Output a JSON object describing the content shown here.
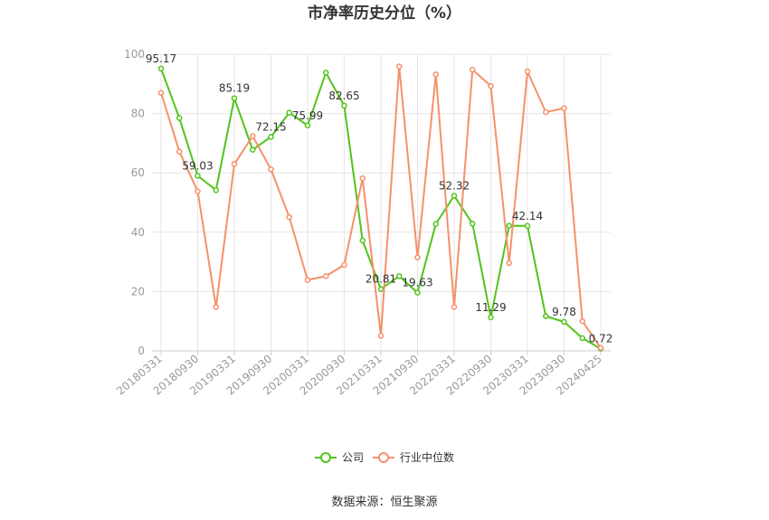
{
  "chart_data": {
    "type": "line",
    "title": "市净率历史分位（%）",
    "ylim": [
      0,
      100
    ],
    "y_ticks": [
      0,
      20,
      40,
      60,
      80,
      100
    ],
    "x": [
      "20180331",
      "20180630",
      "20180930",
      "20181231",
      "20190331",
      "20190630",
      "20190930",
      "20191231",
      "20200331",
      "20200630",
      "20200930",
      "20201231",
      "20210331",
      "20210630",
      "20210930",
      "20211231",
      "20220331",
      "20220630",
      "20220930",
      "20221231",
      "20230331",
      "20230630",
      "20230930",
      "20231231",
      "20240425"
    ],
    "x_tick_labels": [
      "20180331",
      "20180930",
      "20190331",
      "20190930",
      "20200331",
      "20200930",
      "20210331",
      "20210930",
      "20220331",
      "20220930",
      "20230331",
      "20230930",
      "20240425"
    ],
    "series": [
      {
        "name": "公司",
        "color": "#52c41a",
        "values": [
          95.17,
          78.5,
          59.03,
          54.2,
          85.19,
          67.8,
          72.15,
          80.3,
          75.99,
          93.8,
          82.65,
          37.2,
          20.81,
          25.2,
          19.63,
          42.8,
          52.32,
          42.9,
          11.29,
          42.2,
          42.14,
          11.7,
          9.78,
          4.3,
          0.72
        ],
        "labels": {
          "0": "95.17",
          "2": "59.03",
          "4": "85.19",
          "6": "72.15",
          "8": "75.99",
          "10": "82.65",
          "12": "20.81",
          "14": "19.63",
          "16": "52.32",
          "18": "11.29",
          "20": "42.14",
          "22": "9.78",
          "24": "0.72"
        }
      },
      {
        "name": "行业中位数",
        "color": "#f5916a",
        "values": [
          87.0,
          67.2,
          53.8,
          14.8,
          63.0,
          72.4,
          61.2,
          45.1,
          23.9,
          25.2,
          29.0,
          58.2,
          5.1,
          95.9,
          31.5,
          93.2,
          14.8,
          94.8,
          89.3,
          29.6,
          94.2,
          80.5,
          81.8,
          10.0,
          1.0
        ],
        "labels": {}
      }
    ],
    "legend_position": "bottom",
    "grid": true
  },
  "footer": {
    "source": "数据来源：恒生聚源"
  }
}
